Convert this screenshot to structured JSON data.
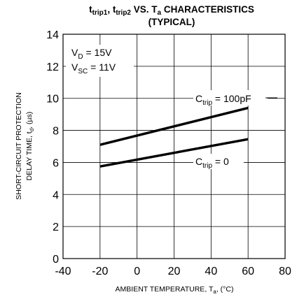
{
  "chart_data": {
    "type": "line",
    "title_line1_parts": [
      "t",
      "trip1",
      ", t",
      "trip2",
      " VS. T",
      "a",
      " CHARACTERISTICS"
    ],
    "title_line2": "(TYPICAL)",
    "xlabel_parts": [
      "AMBIENT TEMPERATURE, T",
      "a",
      ", (°C)"
    ],
    "ylabel_line1": "SHORT-CIRCUIT PROTECTION",
    "ylabel_line2_parts": [
      "DELAY TIME, t",
      "d",
      ", (µs)"
    ],
    "xlim": [
      -40,
      80
    ],
    "ylim": [
      0,
      14
    ],
    "x_ticks": [
      "-40",
      "-20",
      "0",
      "20",
      "40",
      "60",
      "80"
    ],
    "y_ticks": [
      "0",
      "2",
      "4",
      "6",
      "8",
      "10",
      "12",
      "14"
    ],
    "grid": true,
    "conditions": [
      {
        "main": "V",
        "sub": "D",
        "rest": " = 15V"
      },
      {
        "main": "V",
        "sub": "SC",
        "rest": " = 11V"
      }
    ],
    "series": [
      {
        "label_main": "C",
        "label_sub": "trip",
        "label_rest": " = 100pF",
        "x": [
          -20,
          60
        ],
        "y": [
          7.1,
          9.4
        ]
      },
      {
        "label_main": "C",
        "label_sub": "trip",
        "label_rest": " = 0",
        "x": [
          -20,
          60
        ],
        "y": [
          5.75,
          7.45
        ]
      }
    ]
  }
}
